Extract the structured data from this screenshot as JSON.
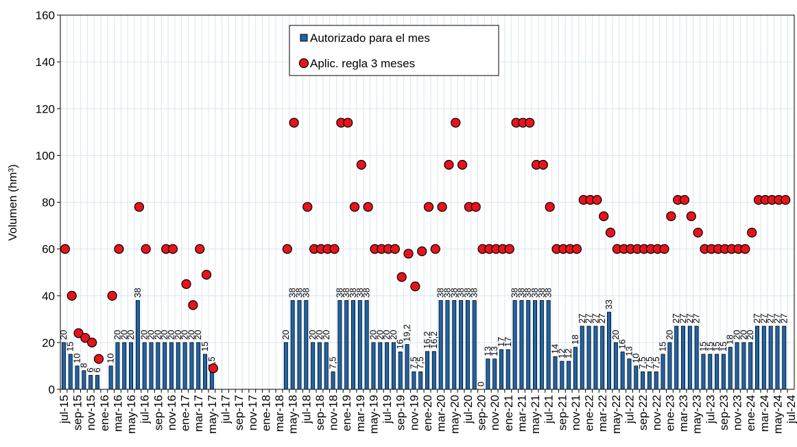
{
  "chart_data": {
    "type": "bar",
    "y_label": "Volumen (hm³)",
    "categories": [
      "jul-15",
      null,
      "sep-15",
      null,
      "nov-15",
      null,
      "ene-16",
      null,
      "mar-16",
      null,
      "may-16",
      null,
      "jul-16",
      null,
      "sep-16",
      null,
      "nov-16",
      null,
      "ene-17",
      null,
      "mar-17",
      null,
      "may-17",
      null,
      "jul-17",
      null,
      "sep-17",
      null,
      "nov-17",
      null,
      "ene-18",
      null,
      "mar-18",
      null,
      "may-18",
      null,
      "jul-18",
      null,
      "sep-18",
      null,
      "nov-18",
      null,
      "ene-19",
      null,
      "mar-19",
      null,
      "may-19",
      null,
      "jul-19",
      null,
      "sep-19",
      null,
      "nov-19",
      null,
      "ene-20",
      null,
      "mar-20",
      null,
      "may-20",
      null,
      "jul-20",
      null,
      "sep-20",
      null,
      "nov-20",
      null,
      "ene-21",
      null,
      "mar-21",
      null,
      "may-21",
      null,
      "jul-21",
      null,
      "sep-21",
      null,
      "nov-21",
      null,
      "ene-22",
      null,
      "mar-22",
      null,
      "may-22",
      null,
      "jul-22",
      null,
      "sep-22",
      null,
      "nov-22",
      null,
      "ene-23",
      null,
      "mar-23",
      null,
      "may-23",
      null,
      "jul-23",
      null,
      "sep-23",
      null,
      "nov-23",
      null,
      "ene-24",
      null,
      "mar-24",
      null,
      "may-24",
      null,
      "jul-24"
    ],
    "series": [
      {
        "name": "Autorizado para el mes",
        "type": "bar",
        "color": "#1f64a8",
        "values": [
          20,
          15,
          10,
          8,
          6,
          6,
          null,
          10,
          20,
          20,
          20,
          38,
          20,
          20,
          20,
          20,
          20,
          20,
          20,
          20,
          20,
          15,
          7.5,
          null,
          null,
          null,
          null,
          null,
          null,
          null,
          null,
          null,
          null,
          20,
          38,
          38,
          38,
          20,
          20,
          20,
          7.5,
          38,
          38,
          38,
          38,
          38,
          20,
          20,
          20,
          20,
          16,
          19.2,
          7.5,
          7.5,
          16.2,
          16.2,
          38,
          38,
          38,
          38,
          38,
          38,
          0,
          13,
          13,
          17,
          17,
          38,
          38,
          38,
          38,
          38,
          38,
          14,
          12,
          12,
          18,
          27,
          27,
          27,
          27,
          33,
          20,
          16,
          13,
          10,
          7.5,
          7.5,
          7.5,
          15,
          20,
          27,
          27,
          27,
          27,
          15,
          15,
          15,
          15,
          18,
          20,
          20,
          20,
          27,
          27,
          27,
          27,
          27,
          null
        ],
        "value_labels": [
          "20",
          "15",
          "10",
          "8",
          "6",
          "6",
          null,
          "10",
          "20",
          "20",
          "20",
          "38",
          "20",
          "20",
          "20",
          "20",
          "20",
          "20",
          "20",
          "20",
          "20",
          "15",
          "7,5",
          null,
          null,
          null,
          null,
          null,
          null,
          null,
          null,
          null,
          null,
          "20",
          "38",
          "38",
          "38",
          "20",
          "20",
          "20",
          "7,5",
          "38",
          "38",
          "38",
          "38",
          "38",
          "20",
          "20",
          "20",
          "20",
          "16",
          "19,2",
          "7,5",
          "7,5",
          "16,2",
          "16,2",
          "38",
          "38",
          "38",
          "38",
          "38",
          "38",
          "0",
          "13",
          "13",
          "17",
          "17",
          "38",
          "38",
          "38",
          "38",
          "38",
          "38",
          "14",
          "12",
          "12",
          "18",
          "27",
          "27",
          "27",
          "27",
          "33",
          "20",
          "16",
          "13",
          "10",
          "7,5",
          "7,5",
          "7,5",
          "15",
          "20",
          "27",
          "27",
          "27",
          "27",
          "15",
          "15",
          "15",
          "15",
          "18",
          "20",
          "20",
          "20",
          "27",
          "27",
          "27",
          "27",
          "27",
          null
        ]
      },
      {
        "name": "Aplic. regla 3 meses",
        "type": "scatter",
        "color": "#e8141a",
        "values": [
          60,
          40,
          24,
          22,
          20,
          13,
          null,
          40,
          60,
          null,
          null,
          78,
          60,
          null,
          null,
          60,
          60,
          null,
          45,
          36,
          60,
          49,
          9,
          null,
          null,
          null,
          null,
          null,
          null,
          null,
          null,
          null,
          null,
          60,
          114,
          null,
          78,
          60,
          60,
          60,
          60,
          114,
          114,
          78,
          96,
          78,
          60,
          60,
          60,
          60,
          48,
          58,
          44,
          59,
          78,
          60,
          78,
          96,
          114,
          96,
          78,
          78,
          60,
          60,
          60,
          60,
          60,
          114,
          114,
          114,
          96,
          96,
          78,
          60,
          60,
          60,
          60,
          81,
          81,
          81,
          74,
          67,
          60,
          60,
          60,
          60,
          60,
          60,
          60,
          60,
          74,
          81,
          81,
          74,
          67,
          60,
          60,
          60,
          60,
          60,
          60,
          60,
          67,
          81,
          81,
          81,
          81,
          81,
          null
        ]
      }
    ],
    "ylim": [
      0,
      160
    ],
    "yticks": [
      0,
      20,
      40,
      60,
      80,
      100,
      120,
      140,
      160
    ],
    "grid": true
  }
}
